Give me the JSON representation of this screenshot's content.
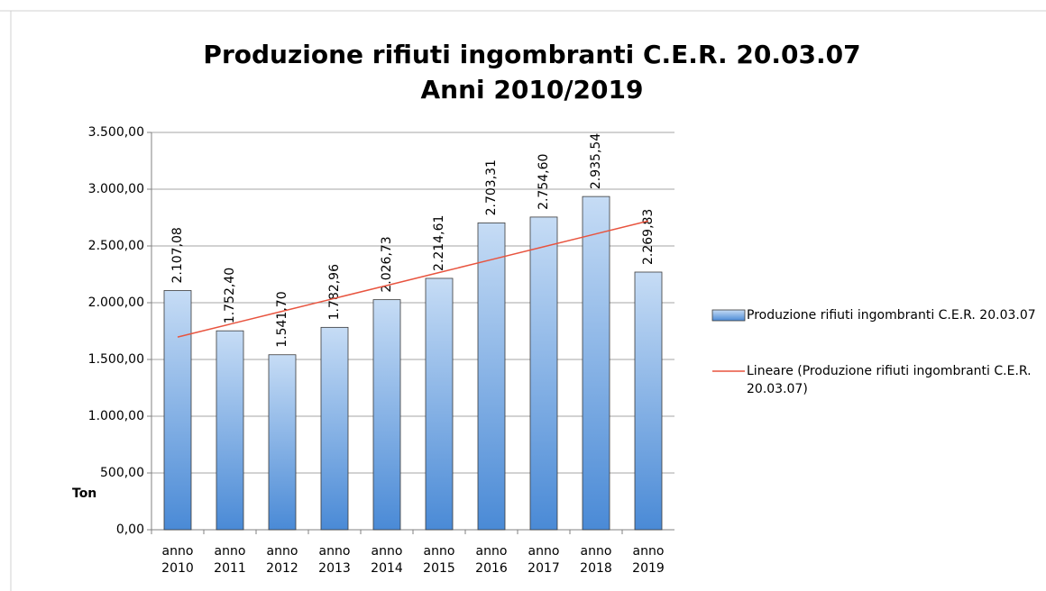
{
  "chart_data": {
    "type": "bar",
    "title": "Produzione rifiuti ingombranti C.E.R. 20.03.07",
    "subtitle": "Anni 2010/2019",
    "y_label": "Ton",
    "categories": [
      "anno 2010",
      "anno 2011",
      "anno 2012",
      "anno 2013",
      "anno 2014",
      "anno 2015",
      "anno 2016",
      "anno 2017",
      "anno 2018",
      "anno 2019"
    ],
    "series": [
      {
        "name": "Produzione rifiuti ingombranti C.E.R. 20.03.07",
        "type": "bar",
        "color": "#5b9bd5",
        "values": [
          2107.08,
          1752.4,
          1541.7,
          1782.96,
          2026.73,
          2214.61,
          2703.31,
          2754.6,
          2935.54,
          2269.83
        ],
        "value_labels": [
          "2.107,08",
          "1.752,40",
          "1.541,70",
          "1.782,96",
          "2.026,73",
          "2.214,61",
          "2.703,31",
          "2.754,60",
          "2.935,54",
          "2.269,83"
        ]
      },
      {
        "name": "Lineare (Produzione rifiuti ingombranti C.E.R. 20.03.07)",
        "type": "line",
        "color": "#e8543f",
        "values": [
          1697.2,
          1810.9,
          1924.6,
          2038.3,
          2152.0,
          2265.7,
          2379.4,
          2493.1,
          2606.8,
          2720.5
        ]
      }
    ],
    "ylim": [
      0,
      3500
    ],
    "yticks": [
      {
        "value": 0,
        "label": "0,00"
      },
      {
        "value": 500,
        "label": "500,00"
      },
      {
        "value": 1000,
        "label": "1.000,00"
      },
      {
        "value": 1500,
        "label": "1.500,00"
      },
      {
        "value": 2000,
        "label": "2.000,00"
      },
      {
        "value": 2500,
        "label": "2.500,00"
      },
      {
        "value": 3000,
        "label": "3.000,00"
      },
      {
        "value": 3500,
        "label": "3.500,00"
      }
    ],
    "grid": true,
    "legend": "right"
  }
}
